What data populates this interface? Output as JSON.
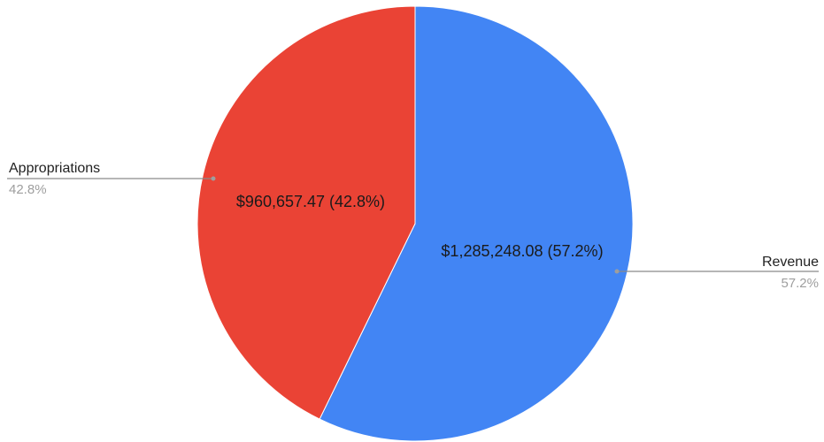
{
  "chart_data": {
    "type": "pie",
    "slices": [
      {
        "name": "Revenue",
        "value": 1285248.08,
        "percent": "57.2%",
        "label": "$1,285,248.08 (57.2%)",
        "color": "#4285f4"
      },
      {
        "name": "Appropriations",
        "value": 960657.47,
        "percent": "42.8%",
        "label": "$960,657.47 (42.8%)",
        "color": "#ea4335"
      }
    ],
    "start_angle": "top",
    "direction": "clockwise",
    "legend": "callout-labels"
  }
}
